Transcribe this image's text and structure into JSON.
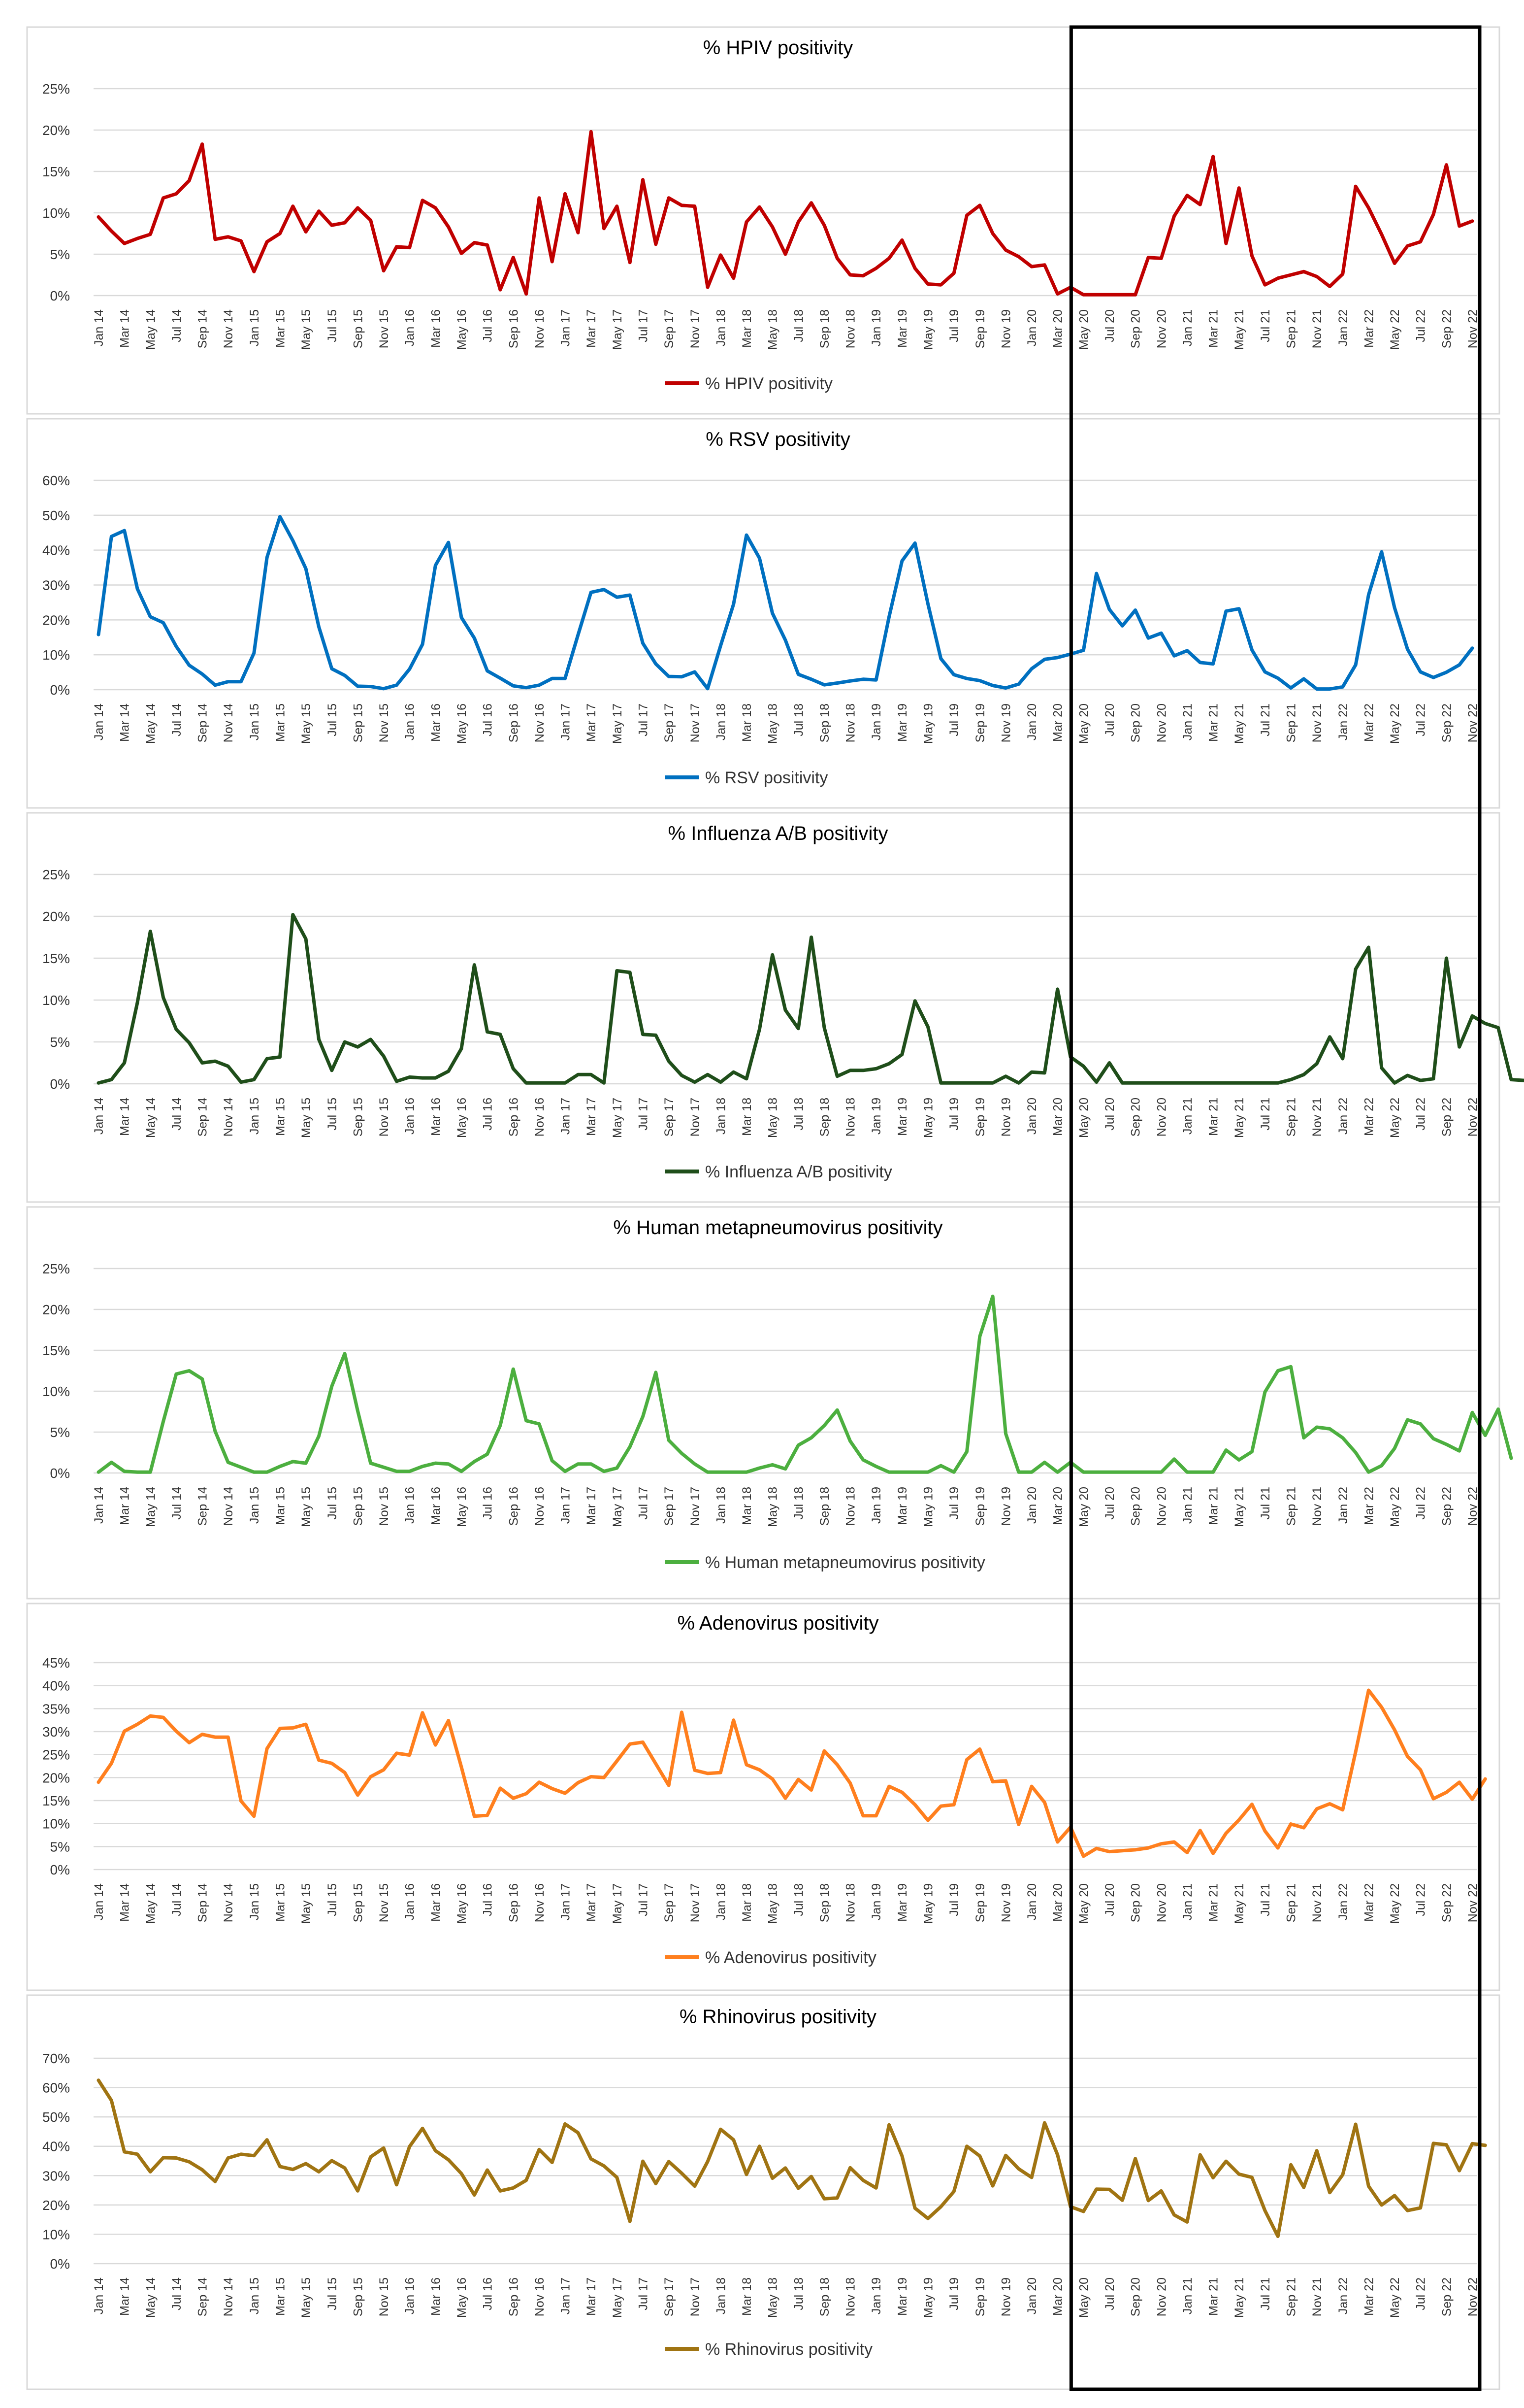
{
  "x_labels": [
    "Jan 14",
    "Mar 14",
    "May 14",
    "Jul 14",
    "Sep 14",
    "Nov 14",
    "Jan 15",
    "Mar 15",
    "May 15",
    "Jul 15",
    "Sep 15",
    "Nov 15",
    "Jan 16",
    "Mar 16",
    "May 16",
    "Jul 16",
    "Sep 16",
    "Nov 16",
    "Jan 17",
    "Mar 17",
    "May 17",
    "Jul 17",
    "Sep 17",
    "Nov 17",
    "Jan 18",
    "Mar 18",
    "May 18",
    "Jul 18",
    "Sep 18",
    "Nov 18",
    "Jan 19",
    "Mar 19",
    "May 19",
    "Jul 19",
    "Sep 19",
    "Nov 19",
    "Jan 20",
    "Mar 20",
    "May 20",
    "Jul 20",
    "Sep 20",
    "Nov 20",
    "Jan 21",
    "Mar 21",
    "May 21",
    "Jul 21",
    "Sep 21",
    "Nov 21",
    "Jan 22",
    "Mar 22",
    "May 22",
    "Jul 22",
    "Sep 22",
    "Nov 22"
  ],
  "highlight": {
    "from": "May 20",
    "to": "Dec 22"
  },
  "chart_data": [
    {
      "type": "line",
      "title": "% HPIV positivity",
      "legend": "% HPIV positivity",
      "color": "#c00000",
      "ylim": [
        0,
        25
      ],
      "yticks": [
        "0%",
        "5%",
        "10%",
        "15%",
        "20%",
        "25%"
      ],
      "x_start": "Jan 14",
      "values": [
        9.5,
        7.8,
        6.3,
        6.9,
        7.4,
        11.8,
        12.3,
        13.9,
        18.3,
        6.8,
        7.1,
        6.6,
        2.9,
        6.5,
        7.5,
        10.8,
        7.7,
        10.2,
        8.5,
        8.8,
        10.6,
        9.1,
        3.0,
        5.9,
        5.8,
        11.5,
        10.6,
        8.3,
        5.1,
        6.4,
        6.1,
        0.7,
        4.6,
        0.2,
        11.8,
        4.1,
        12.3,
        7.6,
        19.8,
        8.1,
        10.8,
        4.0,
        14.0,
        6.2,
        11.8,
        10.9,
        10.8,
        1.0,
        4.9,
        2.1,
        8.9,
        10.7,
        8.3,
        5.0,
        8.9,
        11.2,
        8.5,
        4.5,
        2.5,
        2.4,
        3.3,
        4.5,
        6.7,
        3.3,
        1.4,
        1.3,
        2.7,
        9.7,
        10.9,
        7.5,
        5.5,
        4.7,
        3.5,
        3.7,
        0.2,
        1.0,
        0.1,
        0.1,
        0.1,
        0.1,
        0.1,
        4.6,
        4.5,
        9.6,
        12.1,
        11.0,
        16.8,
        6.3,
        13.0,
        4.8,
        1.3,
        2.1,
        2.5,
        2.9,
        2.3,
        1.1,
        2.6,
        13.2,
        10.6,
        7.4,
        3.9,
        6.0,
        6.5,
        9.8,
        15.8,
        8.4,
        9.0
      ]
    },
    {
      "type": "line",
      "title": "% RSV positivity",
      "legend": "% RSV positivity",
      "color": "#0070c0",
      "ylim": [
        0,
        60
      ],
      "yticks": [
        "0%",
        "10%",
        "20%",
        "30%",
        "40%",
        "50%",
        "60%"
      ],
      "x_start": "Jan 14",
      "values": [
        15.8,
        43.9,
        45.6,
        28.9,
        20.9,
        19.2,
        12.4,
        7.0,
        4.5,
        1.3,
        2.3,
        2.3,
        10.5,
        37.9,
        49.6,
        42.7,
        34.7,
        18.0,
        6.0,
        4.1,
        1.0,
        0.9,
        0.3,
        1.3,
        5.9,
        13.0,
        35.6,
        42.2,
        20.7,
        14.8,
        5.4,
        3.3,
        1.1,
        0.6,
        1.3,
        3.2,
        3.2,
        15.7,
        27.9,
        28.7,
        26.5,
        27.1,
        13.3,
        7.4,
        3.8,
        3.7,
        5.1,
        0.3,
        12.6,
        24.5,
        44.3,
        37.7,
        21.9,
        14.2,
        4.4,
        3.0,
        1.4,
        1.9,
        2.5,
        3.0,
        2.8,
        20.9,
        36.9,
        42.0,
        24.6,
        8.9,
        4.3,
        3.2,
        2.6,
        1.2,
        0.5,
        1.6,
        6.0,
        8.7,
        9.2,
        10.2,
        11.3,
        33.3,
        23.0,
        18.3,
        22.8,
        14.8,
        16.2,
        9.7,
        11.2,
        7.8,
        7.4,
        22.5,
        23.2,
        11.4,
        5.1,
        3.3,
        0.5,
        3.1,
        0.2,
        0.2,
        0.8,
        7.1,
        27.2,
        39.5,
        23.5,
        11.6,
        5.1,
        3.5,
        5.0,
        7.1,
        11.9
      ]
    },
    {
      "type": "line",
      "title": "% Influenza A/B positivity",
      "legend": "% Influenza A/B positivity",
      "color": "#1f4e1a",
      "ylim": [
        0,
        25
      ],
      "yticks": [
        "0%",
        "5%",
        "10%",
        "15%",
        "20%",
        "25%"
      ],
      "x_start": "Jan 14",
      "values": [
        0.1,
        0.5,
        2.5,
        9.7,
        18.2,
        10.3,
        6.5,
        4.9,
        2.5,
        2.7,
        2.1,
        0.2,
        0.5,
        3.0,
        3.2,
        20.2,
        17.3,
        5.3,
        1.6,
        5.0,
        4.4,
        5.3,
        3.3,
        0.3,
        0.8,
        0.7,
        0.7,
        1.5,
        4.2,
        14.2,
        6.2,
        5.9,
        1.8,
        0.1,
        0.1,
        0.1,
        0.1,
        1.1,
        1.1,
        0.1,
        13.5,
        13.3,
        5.9,
        5.8,
        2.7,
        1.0,
        0.2,
        1.1,
        0.2,
        1.4,
        0.6,
        6.5,
        15.4,
        8.8,
        6.6,
        17.5,
        6.7,
        0.9,
        1.6,
        1.6,
        1.8,
        2.4,
        3.5,
        9.9,
        6.8,
        0.1,
        0.1,
        0.1,
        0.1,
        0.1,
        0.9,
        0.1,
        1.4,
        1.3,
        11.3,
        3.2,
        2.1,
        0.2,
        2.5,
        0.1,
        0.1,
        0.1,
        0.1,
        0.1,
        0.1,
        0.1,
        0.1,
        0.1,
        0.1,
        0.1,
        0.1,
        0.1,
        0.5,
        1.1,
        2.4,
        5.6,
        3.0,
        13.7,
        16.3,
        1.9,
        0.1,
        1.0,
        0.4,
        0.6,
        15.0,
        4.4,
        8.1,
        7.2,
        6.7,
        0.5,
        0.4
      ]
    },
    {
      "type": "line",
      "title": "% Human metapneumovirus positivity",
      "legend": "% Human metapneumovirus positivity",
      "color": "#4caf3f",
      "ylim": [
        0,
        25
      ],
      "yticks": [
        "0%",
        "5%",
        "10%",
        "15%",
        "20%",
        "25%"
      ],
      "x_start": "Jan 14",
      "values": [
        0.1,
        1.3,
        0.2,
        0.1,
        0.1,
        6.3,
        12.1,
        12.5,
        11.5,
        5.1,
        1.3,
        0.7,
        0.1,
        0.1,
        0.8,
        1.4,
        1.2,
        4.5,
        10.6,
        14.6,
        7.6,
        1.2,
        0.7,
        0.2,
        0.2,
        0.8,
        1.2,
        1.1,
        0.2,
        1.4,
        2.3,
        5.8,
        12.7,
        6.4,
        6.0,
        1.5,
        0.2,
        1.1,
        1.1,
        0.2,
        0.6,
        3.2,
        6.9,
        12.3,
        4.0,
        2.4,
        1.1,
        0.1,
        0.1,
        0.1,
        0.1,
        0.6,
        1.0,
        0.5,
        3.4,
        4.3,
        5.8,
        7.7,
        3.9,
        1.6,
        0.8,
        0.1,
        0.1,
        0.1,
        0.1,
        0.9,
        0.1,
        2.6,
        16.7,
        21.6,
        4.8,
        0.1,
        0.1,
        1.3,
        0.1,
        1.3,
        0.1,
        0.1,
        0.1,
        0.1,
        0.1,
        0.1,
        0.1,
        1.7,
        0.1,
        0.1,
        0.1,
        2.8,
        1.6,
        2.6,
        9.9,
        12.5,
        13.0,
        4.3,
        5.6,
        5.4,
        4.3,
        2.5,
        0.1,
        0.9,
        3.0,
        6.5,
        6.0,
        4.2,
        3.5,
        2.7,
        7.4,
        4.6,
        7.8,
        1.8
      ]
    },
    {
      "type": "line",
      "title": "% Adenovirus positivity",
      "legend": "% Adenovirus positivity",
      "color": "#ff7f1e",
      "ylim": [
        0,
        45
      ],
      "yticks": [
        "0%",
        "5%",
        "10%",
        "15%",
        "20%",
        "25%",
        "30%",
        "35%",
        "40%",
        "45%"
      ],
      "x_start": "Jan 14",
      "values": [
        19.0,
        23.1,
        30.1,
        31.6,
        33.4,
        33.1,
        30.1,
        27.6,
        29.4,
        28.8,
        28.8,
        14.9,
        11.6,
        26.3,
        30.7,
        30.8,
        31.6,
        23.8,
        23.1,
        21.1,
        16.2,
        20.2,
        21.7,
        25.3,
        24.9,
        34.1,
        27.1,
        32.4,
        22.3,
        11.6,
        11.8,
        17.7,
        15.5,
        16.5,
        19.0,
        17.6,
        16.6,
        18.9,
        20.2,
        20.0,
        23.6,
        27.3,
        27.7,
        23.0,
        18.3,
        34.2,
        21.6,
        20.9,
        21.1,
        32.5,
        22.8,
        21.7,
        19.7,
        15.5,
        19.6,
        17.3,
        25.8,
        22.8,
        18.8,
        11.7,
        11.7,
        18.1,
        16.8,
        14.1,
        10.7,
        13.8,
        14.1,
        23.9,
        26.2,
        19.1,
        19.3,
        9.8,
        18.1,
        14.6,
        6.0,
        9.2,
        2.9,
        4.6,
        3.9,
        4.1,
        4.3,
        4.7,
        5.6,
        6.0,
        3.7,
        8.5,
        3.5,
        7.9,
        10.8,
        14.2,
        8.4,
        4.7,
        9.9,
        9.1,
        13.2,
        14.3,
        13.0,
        25.6,
        39.0,
        35.3,
        30.4,
        24.6,
        21.7,
        15.4,
        16.8,
        19.0,
        15.3,
        19.7
      ]
    },
    {
      "type": "line",
      "title": "% Rhinovirus positivity",
      "legend": "% Rhinovirus positivity",
      "color": "#a07412",
      "ylim": [
        0,
        70
      ],
      "yticks": [
        "0%",
        "10%",
        "20%",
        "30%",
        "40%",
        "50%",
        "60%",
        "70%"
      ],
      "x_start": "Jan 14",
      "values": [
        62.5,
        55.6,
        38.1,
        37.3,
        31.3,
        36.1,
        36.0,
        34.7,
        32.0,
        28.0,
        36.0,
        37.3,
        36.8,
        42.2,
        33.1,
        32.1,
        34.1,
        31.3,
        35.1,
        32.6,
        24.8,
        36.4,
        39.4,
        26.9,
        39.9,
        46.1,
        38.5,
        35.4,
        30.7,
        23.4,
        31.9,
        24.8,
        25.8,
        28.4,
        38.9,
        34.5,
        47.6,
        44.6,
        35.7,
        33.3,
        29.4,
        14.4,
        34.9,
        27.3,
        34.8,
        30.8,
        26.4,
        34.8,
        45.8,
        42.2,
        30.4,
        40.0,
        29.1,
        32.6,
        25.7,
        29.7,
        22.1,
        22.4,
        32.7,
        28.4,
        25.8,
        47.3,
        36.7,
        18.9,
        15.4,
        19.4,
        24.6,
        40.0,
        36.7,
        26.5,
        36.9,
        32.3,
        29.4,
        48.0,
        37.1,
        19.4,
        17.8,
        25.4,
        25.3,
        21.6,
        35.8,
        21.5,
        24.8,
        16.6,
        14.2,
        37.1,
        29.3,
        34.9,
        30.5,
        29.4,
        18.1,
        9.3,
        33.7,
        26.0,
        38.5,
        24.2,
        30.3,
        47.5,
        26.4,
        20.0,
        23.2,
        18.1,
        19.0,
        41.0,
        40.5,
        31.7,
        40.9,
        40.3
      ]
    }
  ]
}
